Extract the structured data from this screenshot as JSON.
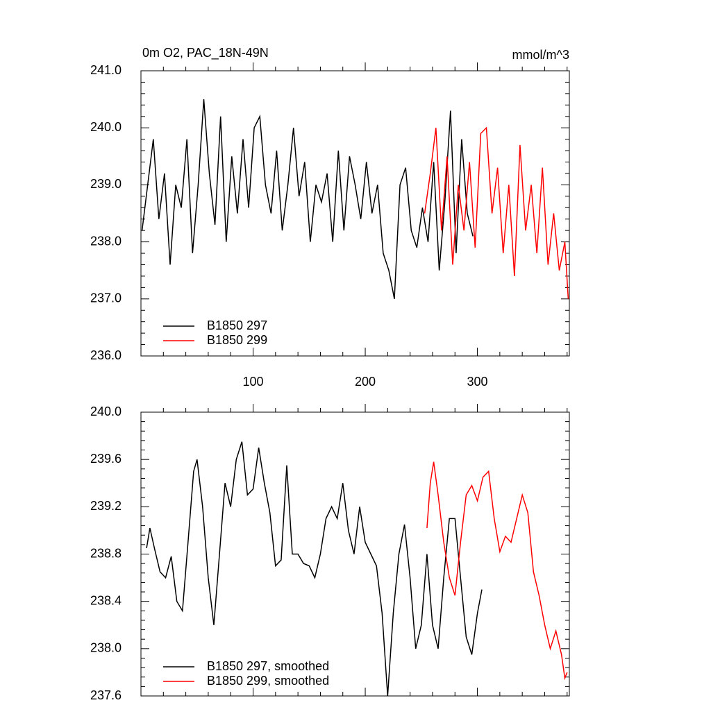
{
  "chart_data": [
    {
      "type": "line",
      "title": "0m O2, PAC_18N-49N",
      "units": "mmol/m^3",
      "xlim": [
        0,
        382
      ],
      "xticks": [
        100,
        200,
        300
      ],
      "ylim": [
        236,
        241
      ],
      "yticks": [
        {
          "value": 236,
          "label": "236.0"
        },
        {
          "value": 237,
          "label": "237.0"
        },
        {
          "value": 238,
          "label": "238.0"
        },
        {
          "value": 239,
          "label": "239.0"
        },
        {
          "value": 240,
          "label": "240.0"
        },
        {
          "value": 241,
          "label": "241.0"
        }
      ],
      "series": [
        {
          "name": "B1850 297",
          "color": "#000000",
          "x": [
            1,
            6,
            11,
            16,
            21,
            26,
            31,
            36,
            41,
            46,
            51,
            56,
            61,
            66,
            71,
            76,
            81,
            86,
            91,
            96,
            101,
            106,
            111,
            116,
            121,
            126,
            131,
            136,
            141,
            146,
            151,
            156,
            161,
            166,
            171,
            176,
            181,
            186,
            191,
            196,
            201,
            206,
            211,
            216,
            221,
            226,
            231,
            236,
            241,
            246,
            251,
            256,
            261,
            266,
            271,
            276,
            281,
            286,
            291,
            296
          ],
          "values": [
            238.2,
            239.0,
            239.8,
            238.4,
            239.2,
            237.6,
            239.0,
            238.6,
            239.8,
            237.8,
            239.0,
            240.5,
            239.2,
            238.3,
            240.2,
            238.0,
            239.5,
            238.5,
            239.8,
            238.6,
            240.0,
            240.2,
            239.0,
            238.5,
            239.6,
            238.2,
            239.0,
            240.0,
            238.8,
            239.4,
            238.0,
            239.0,
            238.7,
            239.2,
            238.0,
            239.6,
            238.2,
            239.5,
            239.0,
            238.4,
            239.4,
            238.5,
            239.0,
            237.8,
            237.5,
            237.0,
            239.0,
            239.3,
            238.2,
            237.9,
            238.6,
            238.0,
            239.4,
            237.5,
            238.7,
            240.3,
            237.8,
            239.8,
            238.5,
            238.1
          ]
        },
        {
          "name": "B1850 299",
          "color": "#ff0000",
          "x": [
            253,
            258,
            263,
            268,
            273,
            278,
            283,
            288,
            293,
            298,
            303,
            308,
            313,
            318,
            323,
            328,
            333,
            338,
            343,
            348,
            353,
            358,
            363,
            368,
            373,
            378,
            381
          ],
          "values": [
            238.5,
            239.2,
            240.0,
            238.2,
            239.5,
            237.6,
            239.0,
            238.2,
            239.4,
            237.9,
            239.9,
            240.0,
            238.5,
            239.3,
            237.8,
            239.0,
            237.4,
            239.7,
            238.2,
            239.0,
            237.8,
            239.3,
            237.6,
            238.5,
            237.5,
            238.0,
            237.0
          ]
        }
      ]
    },
    {
      "type": "line",
      "xlim": [
        0,
        382
      ],
      "xticks": [
        100,
        200,
        300
      ],
      "ylim": [
        237.6,
        240
      ],
      "yticks": [
        {
          "value": 237.6,
          "label": "237.6"
        },
        {
          "value": 238,
          "label": "238.0"
        },
        {
          "value": 238.4,
          "label": "238.4"
        },
        {
          "value": 238.8,
          "label": "238.8"
        },
        {
          "value": 239.2,
          "label": "239.2"
        },
        {
          "value": 239.6,
          "label": "239.6"
        },
        {
          "value": 240,
          "label": "240.0"
        }
      ],
      "series": [
        {
          "name": "B1850 297, smoothed",
          "color": "#000000",
          "x": [
            5,
            8,
            12,
            17,
            22,
            27,
            32,
            37,
            42,
            47,
            50,
            55,
            60,
            65,
            70,
            75,
            80,
            85,
            90,
            95,
            100,
            105,
            110,
            115,
            120,
            125,
            130,
            135,
            140,
            145,
            150,
            155,
            160,
            165,
            170,
            175,
            180,
            185,
            190,
            195,
            200,
            205,
            210,
            215,
            220,
            225,
            230,
            235,
            240,
            245,
            250,
            255,
            260,
            265,
            270,
            275,
            280,
            285,
            290,
            295,
            300,
            304
          ],
          "values": [
            238.85,
            239.02,
            238.85,
            238.65,
            238.6,
            238.78,
            238.4,
            238.32,
            238.9,
            239.5,
            239.6,
            239.2,
            238.6,
            238.2,
            238.8,
            239.4,
            239.2,
            239.6,
            239.75,
            239.3,
            239.35,
            239.7,
            239.4,
            239.15,
            238.7,
            238.75,
            239.55,
            238.8,
            238.8,
            238.72,
            238.7,
            238.6,
            238.8,
            239.1,
            239.2,
            239.1,
            239.4,
            239.0,
            238.8,
            239.2,
            238.9,
            238.8,
            238.7,
            238.3,
            237.6,
            238.3,
            238.8,
            239.05,
            238.6,
            238.0,
            238.2,
            238.8,
            238.2,
            238.0,
            238.6,
            239.1,
            239.1,
            238.6,
            238.1,
            237.95,
            238.3,
            238.5
          ]
        },
        {
          "name": "B1850 299, smoothed",
          "color": "#ff0000",
          "x": [
            255,
            258,
            261,
            265,
            270,
            275,
            280,
            285,
            290,
            295,
            300,
            305,
            310,
            315,
            320,
            325,
            330,
            335,
            340,
            345,
            350,
            355,
            360,
            365,
            370,
            375,
            378,
            380
          ],
          "values": [
            239.02,
            239.4,
            239.58,
            239.3,
            238.9,
            238.6,
            238.45,
            238.9,
            239.3,
            239.38,
            239.25,
            239.45,
            239.5,
            239.1,
            238.82,
            238.95,
            238.9,
            239.1,
            239.3,
            239.15,
            238.65,
            238.45,
            238.2,
            238.0,
            238.15,
            237.95,
            237.75,
            237.8
          ]
        }
      ]
    }
  ]
}
